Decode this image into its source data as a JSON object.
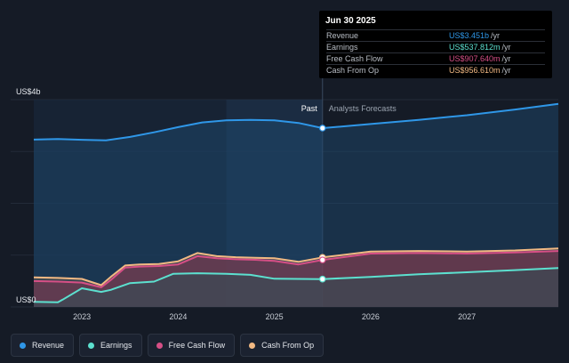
{
  "chart_data": {
    "type": "area",
    "y_axis": {
      "top_label": "US$4b",
      "bottom_label": "US$0",
      "ylim": [
        0,
        4000
      ]
    },
    "x_ticks": [
      "2023",
      "2024",
      "2025",
      "2026",
      "2027"
    ],
    "x_range": [
      2022.5,
      2027.95
    ],
    "divider": {
      "x": 2025.5,
      "past_label": "Past",
      "forecast_label": "Analysts Forecasts"
    },
    "series": [
      {
        "name": "Revenue",
        "color": "#2f97e8",
        "x": [
          2022.5,
          2022.75,
          2023.0,
          2023.25,
          2023.5,
          2023.75,
          2024.0,
          2024.25,
          2024.5,
          2024.75,
          2025.0,
          2025.25,
          2025.5,
          2026.0,
          2026.5,
          2027.0,
          2027.5,
          2027.95
        ],
        "values": [
          3230,
          3240,
          3225,
          3215,
          3280,
          3370,
          3470,
          3560,
          3600,
          3610,
          3600,
          3550,
          3451,
          3530,
          3610,
          3700,
          3810,
          3920
        ]
      },
      {
        "name": "Cash From Op",
        "color": "#f2b983",
        "x": [
          2022.5,
          2022.75,
          2023.0,
          2023.2,
          2023.3,
          2023.45,
          2023.6,
          2023.8,
          2024.0,
          2024.2,
          2024.4,
          2024.6,
          2024.8,
          2025.0,
          2025.25,
          2025.5,
          2026.0,
          2026.5,
          2027.0,
          2027.5,
          2027.95
        ],
        "values": [
          570,
          560,
          540,
          420,
          580,
          800,
          820,
          830,
          880,
          1040,
          980,
          960,
          950,
          940,
          870,
          956.61,
          1070,
          1080,
          1070,
          1090,
          1130
        ]
      },
      {
        "name": "Free Cash Flow",
        "color": "#d64f86",
        "x": [
          2022.5,
          2022.75,
          2023.0,
          2023.2,
          2023.3,
          2023.45,
          2023.6,
          2023.8,
          2024.0,
          2024.2,
          2024.4,
          2024.6,
          2024.8,
          2025.0,
          2025.25,
          2025.5,
          2026.0,
          2026.5,
          2027.0,
          2027.5,
          2027.95
        ],
        "values": [
          500,
          490,
          470,
          380,
          520,
          760,
          780,
          790,
          820,
          980,
          940,
          920,
          910,
          890,
          820,
          907.64,
          1030,
          1040,
          1030,
          1050,
          1080
        ]
      },
      {
        "name": "Earnings",
        "color": "#5ce0cf",
        "x": [
          2022.5,
          2022.75,
          2022.8,
          2023.0,
          2023.2,
          2023.3,
          2023.5,
          2023.75,
          2023.95,
          2024.2,
          2024.5,
          2024.75,
          2025.0,
          2025.5,
          2026.0,
          2026.5,
          2027.0,
          2027.5,
          2027.95
        ],
        "values": [
          100,
          90,
          140,
          360,
          290,
          330,
          460,
          490,
          640,
          650,
          640,
          620,
          545,
          537.812,
          580,
          630,
          670,
          710,
          750
        ]
      }
    ],
    "tooltip": {
      "date": "Jun 30 2025",
      "rows": [
        {
          "label": "Revenue",
          "value": "US$3.451b",
          "unit": "/yr",
          "color": "#2f97e8"
        },
        {
          "label": "Earnings",
          "value": "US$537.812m",
          "unit": "/yr",
          "color": "#5ce0cf"
        },
        {
          "label": "Free Cash Flow",
          "value": "US$907.640m",
          "unit": "/yr",
          "color": "#d64f86"
        },
        {
          "label": "Cash From Op",
          "value": "US$956.610m",
          "unit": "/yr",
          "color": "#f2b983"
        }
      ]
    }
  },
  "legend": [
    {
      "label": "Revenue",
      "color": "#2f97e8"
    },
    {
      "label": "Earnings",
      "color": "#5ce0cf"
    },
    {
      "label": "Free Cash Flow",
      "color": "#d64f86"
    },
    {
      "label": "Cash From Op",
      "color": "#f2b983"
    }
  ]
}
